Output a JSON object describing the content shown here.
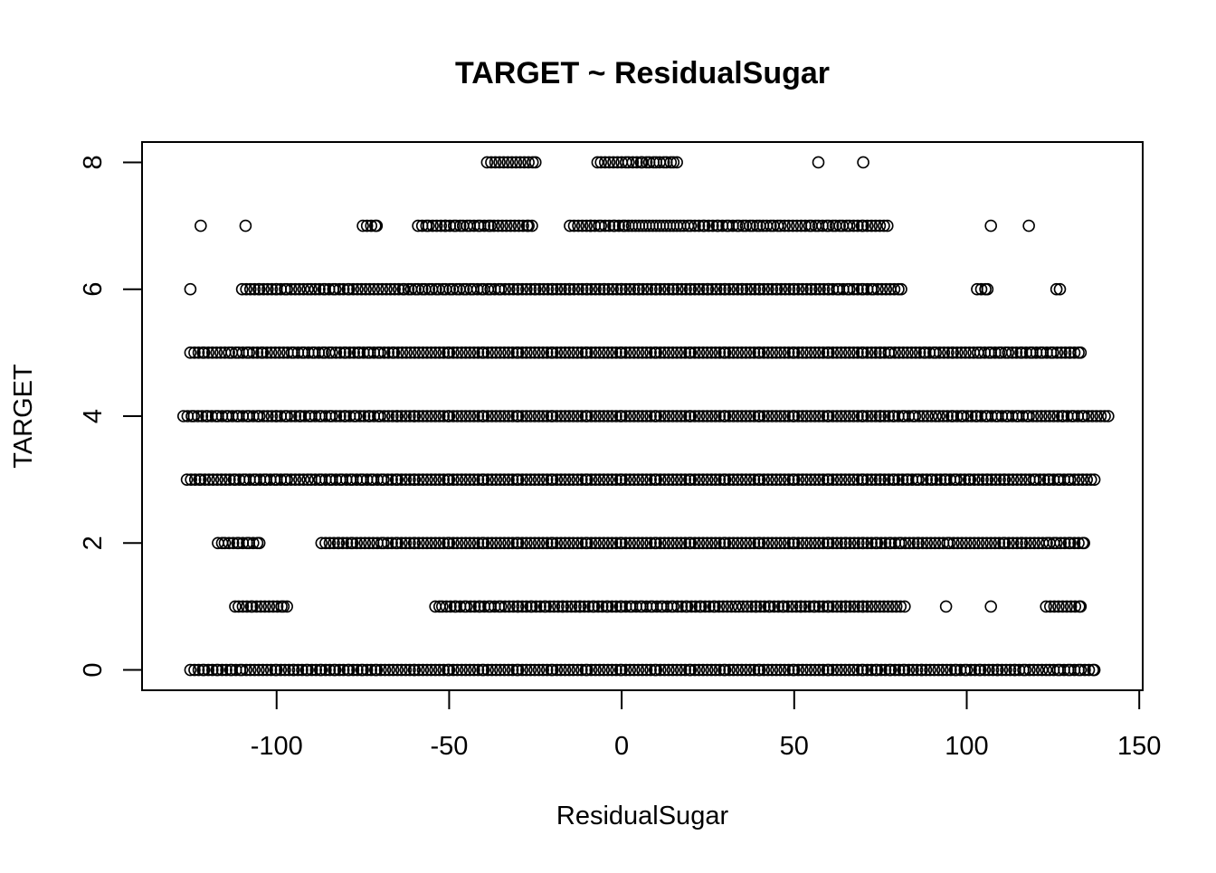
{
  "chart_data": {
    "type": "scatter",
    "title": "TARGET ~ ResidualSugar",
    "xlabel": "ResidualSugar",
    "ylabel": "TARGET",
    "xlim": [
      -139,
      151
    ],
    "ylim": [
      -0.32,
      8.32
    ],
    "xticks": [
      -100,
      -50,
      0,
      50,
      100,
      150
    ],
    "yticks": [
      0,
      2,
      4,
      6,
      8
    ],
    "xtick_labels": [
      "-100",
      "-50",
      "0",
      "50",
      "100",
      "150"
    ],
    "ytick_labels": [
      "0",
      "2",
      "4",
      "6",
      "8"
    ],
    "grid": false,
    "marker": "open-circle",
    "series": [
      {
        "rows": [
          {
            "y": 8,
            "x": [
              -39,
              -33,
              -25,
              -7,
              -6,
              2,
              6,
              8,
              10,
              11,
              13,
              15,
              16,
              57,
              70
            ]
          },
          {
            "y": 7,
            "x": [
              -122,
              -109,
              -75,
              -71,
              -59,
              -56,
              -51,
              -48,
              -46,
              -44,
              -41,
              -38,
              -37,
              -27,
              -26,
              -15,
              -9,
              -6,
              -2,
              1,
              2,
              3,
              4,
              5,
              6,
              7,
              8,
              9,
              10,
              11,
              12,
              13,
              14,
              15,
              16,
              17,
              18,
              20,
              24,
              28,
              31,
              34,
              36,
              38,
              40,
              41,
              42,
              44,
              46,
              52,
              55,
              57,
              60,
              62,
              64,
              66,
              70,
              77,
              107,
              118
            ]
          },
          {
            "y": 6,
            "x": [
              -125,
              -110,
              -105,
              -100,
              -97,
              -90,
              -86,
              -83,
              -79,
              -73,
              -63,
              -61,
              -59,
              -57,
              -55,
              -53,
              -51,
              -49,
              -47,
              -45,
              -43,
              -40,
              -38,
              -35,
              -30,
              -25,
              -20,
              -15,
              -10,
              -5,
              0,
              5,
              10,
              15,
              20,
              25,
              30,
              35,
              40,
              45,
              50,
              55,
              60,
              63,
              66,
              70,
              73,
              79,
              81,
              103,
              106,
              126,
              127
            ]
          },
          {
            "y": 5,
            "x": [
              -125,
              -121,
              -113,
              -111,
              -108,
              -104,
              -98,
              -95,
              -92,
              -89,
              -86,
              -84,
              -80,
              -76,
              -73,
              -70,
              -66,
              -60,
              -50,
              -40,
              -30,
              -20,
              -10,
              0,
              10,
              20,
              30,
              40,
              50,
              60,
              70,
              75,
              78,
              84,
              88,
              91,
              96,
              104,
              107,
              110,
              112,
              116,
              119,
              122,
              125,
              130,
              133
            ]
          },
          {
            "y": 4,
            "x": [
              -127,
              -124,
              -120,
              -117,
              -114,
              -111,
              -108,
              -105,
              -100,
              -97,
              -93,
              -90,
              -87,
              -84,
              -80,
              -77,
              -73,
              -70,
              -65,
              -60,
              -50,
              -40,
              -30,
              -20,
              -10,
              0,
              10,
              20,
              30,
              40,
              50,
              60,
              70,
              75,
              79,
              82,
              85,
              92,
              96,
              99,
              103,
              106,
              109,
              112,
              115,
              118,
              124,
              128,
              131,
              134,
              141
            ]
          },
          {
            "y": 3,
            "x": [
              -126,
              -122,
              -116,
              -112,
              -109,
              -106,
              -103,
              -100,
              -97,
              -90,
              -87,
              -84,
              -81,
              -78,
              -75,
              -72,
              -69,
              -65,
              -60,
              -50,
              -40,
              -30,
              -20,
              -10,
              0,
              10,
              20,
              30,
              40,
              50,
              60,
              70,
              75,
              79,
              83,
              86,
              90,
              94,
              97,
              101,
              106,
              111,
              117,
              120,
              124,
              127,
              130,
              137
            ]
          },
          {
            "y": 2,
            "x": [
              -117,
              -115,
              -111,
              -108,
              -105,
              -87,
              -82,
              -78,
              -69,
              -65,
              -60,
              -50,
              -40,
              -30,
              -20,
              -10,
              0,
              10,
              20,
              30,
              40,
              50,
              60,
              65,
              70,
              74,
              78,
              81,
              86,
              92,
              95,
              101,
              107,
              111,
              116,
              124,
              126,
              130,
              134
            ]
          },
          {
            "y": 1,
            "x": [
              -112,
              -111,
              -107,
              -98,
              -97,
              -54,
              -52,
              -48,
              -45,
              -41,
              -38,
              -35,
              -30,
              -26,
              -22,
              -17,
              -12,
              -8,
              -4,
              0,
              3,
              6,
              9,
              12,
              15,
              19,
              23,
              27,
              34,
              39,
              43,
              47,
              52,
              56,
              60,
              65,
              70,
              76,
              82,
              94,
              107,
              123,
              133
            ]
          },
          {
            "y": 0,
            "x": [
              -125,
              -121,
              -117,
              -113,
              -110,
              -104,
              -100,
              -95,
              -91,
              -87,
              -83,
              -79,
              -75,
              -71,
              -65,
              -60,
              -50,
              -40,
              -30,
              -20,
              -10,
              0,
              10,
              20,
              30,
              40,
              50,
              60,
              70,
              74,
              78,
              82,
              87,
              93,
              97,
              100,
              104,
              109,
              114,
              117,
              124,
              127,
              130,
              133,
              137
            ]
          }
        ]
      }
    ]
  }
}
